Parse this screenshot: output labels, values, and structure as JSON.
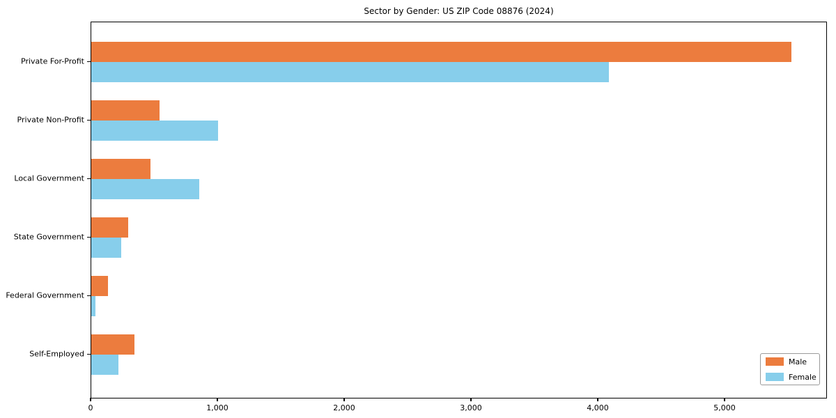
{
  "chart_data": {
    "type": "bar",
    "orientation": "horizontal",
    "title": "Sector by Gender: US ZIP Code 08876 (2024)",
    "xlabel": "",
    "ylabel": "",
    "categories": [
      "Private For-Profit",
      "Private Non-Profit",
      "Local Government",
      "State Government",
      "Federal Government",
      "Self-Employed"
    ],
    "series": [
      {
        "name": "Male",
        "color": "#ec7c3e",
        "values": [
          5520,
          540,
          465,
          290,
          130,
          340
        ]
      },
      {
        "name": "Female",
        "color": "#87ceeb",
        "values": [
          4080,
          1000,
          850,
          235,
          35,
          215
        ]
      }
    ],
    "xlim": [
      0,
      5810
    ],
    "xticks": [
      0,
      1000,
      2000,
      3000,
      4000,
      5000
    ],
    "xtick_labels": [
      "0",
      "1,000",
      "2,000",
      "3,000",
      "4,000",
      "5,000"
    ],
    "grid": false,
    "legend_position": "lower right",
    "frame": true
  }
}
